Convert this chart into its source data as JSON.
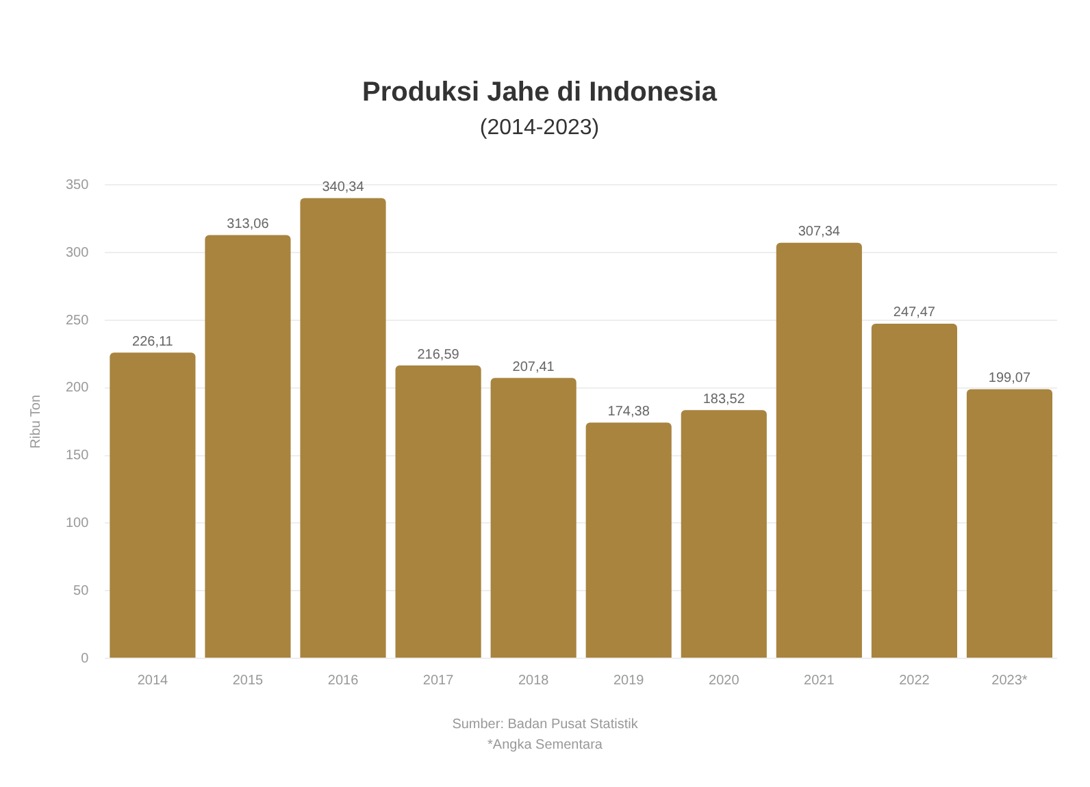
{
  "chart_data": {
    "type": "bar",
    "title": "Produksi Jahe di Indonesia",
    "subtitle": "(2014-2023)",
    "ylabel": "Ribu Ton",
    "categories": [
      "2014",
      "2015",
      "2016",
      "2017",
      "2018",
      "2019",
      "2020",
      "2021",
      "2022",
      "2023*"
    ],
    "values": [
      226.11,
      313.06,
      340.34,
      216.59,
      207.41,
      174.38,
      183.52,
      307.34,
      247.47,
      199.07
    ],
    "value_labels": [
      "226,11",
      "313,06",
      "340,34",
      "216,59",
      "207,41",
      "174,38",
      "183,52",
      "307,34",
      "247,47",
      "199,07"
    ],
    "color": "#a8843f",
    "ylim": [
      0,
      350
    ],
    "yticks": [
      0,
      50,
      100,
      150,
      200,
      250,
      300,
      350
    ],
    "grid": "y",
    "legend": false,
    "annotations": [
      "Sumber: Badan Pusat Statistik",
      "*Angka Sementara"
    ]
  }
}
